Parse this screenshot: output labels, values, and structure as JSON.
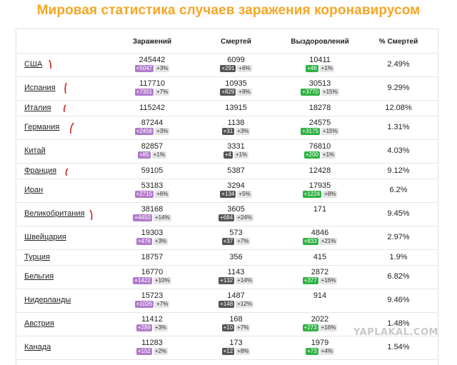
{
  "title": "Мировая статистика случаев заражения коронавирусом",
  "headers": {
    "cases": "Заражений",
    "deaths": "Смертей",
    "recovered": "Выздоровлений",
    "death_rate": "% Смертей"
  },
  "rows": [
    {
      "country": "США",
      "cases": "245442",
      "cases_new": "+5047",
      "cases_pct": "+3%",
      "deaths": "6099",
      "deaths_new": "+291",
      "deaths_pct": "+6%",
      "recovered": "10411",
      "recovered_new": "+46",
      "recovered_pct": "+1%",
      "rate": "2.49%"
    },
    {
      "country": "Испания",
      "cases": "117710",
      "cases_new": "+7301",
      "cases_pct": "+7%",
      "deaths": "10935",
      "deaths_new": "+829",
      "deaths_pct": "+9%",
      "recovered": "30513",
      "recovered_new": "+3770",
      "recovered_pct": "+15%",
      "rate": "9.29%"
    },
    {
      "country": "Италия",
      "cases": "115242",
      "cases_new": "",
      "cases_pct": "",
      "deaths": "13915",
      "deaths_new": "",
      "deaths_pct": "",
      "recovered": "18278",
      "recovered_new": "",
      "recovered_pct": "",
      "rate": "12.08%"
    },
    {
      "country": "Германия",
      "cases": "87244",
      "cases_new": "+2456",
      "cases_pct": "+3%",
      "deaths": "1138",
      "deaths_new": "+31",
      "deaths_pct": "+3%",
      "recovered": "24575",
      "recovered_new": "+3175",
      "recovered_pct": "+15%",
      "rate": "1.31%"
    },
    {
      "country": "Китай",
      "cases": "82857",
      "cases_new": "+85",
      "cases_pct": "+1%",
      "deaths": "3331",
      "deaths_new": "+4",
      "deaths_pct": "+1%",
      "recovered": "76810",
      "recovered_new": "+200",
      "recovered_pct": "+1%",
      "rate": "4.03%"
    },
    {
      "country": "Франция",
      "cases": "59105",
      "cases_new": "",
      "cases_pct": "",
      "deaths": "5387",
      "deaths_new": "",
      "deaths_pct": "",
      "recovered": "12428",
      "recovered_new": "",
      "recovered_pct": "",
      "rate": "9.12%"
    },
    {
      "country": "Иран",
      "cases": "53183",
      "cases_new": "+2715",
      "cases_pct": "+6%",
      "deaths": "3294",
      "deaths_new": "+134",
      "deaths_pct": "+5%",
      "recovered": "17935",
      "recovered_new": "+1224",
      "recovered_pct": "+8%",
      "rate": "6.2%"
    },
    {
      "country": "Великобритания",
      "cases": "38168",
      "cases_new": "+4450",
      "cases_pct": "+14%",
      "deaths": "3605",
      "deaths_new": "+684",
      "deaths_pct": "+24%",
      "recovered": "171",
      "recovered_new": "",
      "recovered_pct": "",
      "rate": "9.45%"
    },
    {
      "country": "Швейцария",
      "cases": "19303",
      "cases_new": "+476",
      "cases_pct": "+3%",
      "deaths": "573",
      "deaths_new": "+37",
      "deaths_pct": "+7%",
      "recovered": "4846",
      "recovered_new": "+833",
      "recovered_pct": "+21%",
      "rate": "2.97%"
    },
    {
      "country": "Турция",
      "cases": "18757",
      "cases_new": "",
      "cases_pct": "",
      "deaths": "356",
      "deaths_new": "",
      "deaths_pct": "",
      "recovered": "415",
      "recovered_new": "",
      "recovered_pct": "",
      "rate": "1.9%"
    },
    {
      "country": "Бельгия",
      "cases": "16770",
      "cases_new": "+1422",
      "cases_pct": "+10%",
      "deaths": "1143",
      "deaths_new": "+132",
      "deaths_pct": "+14%",
      "recovered": "2872",
      "recovered_new": "+377",
      "recovered_pct": "+16%",
      "rate": "6.82%"
    },
    {
      "country": "Нидерланды",
      "cases": "15723",
      "cases_new": "+1026",
      "cases_pct": "+7%",
      "deaths": "1487",
      "deaths_new": "+148",
      "deaths_pct": "+12%",
      "recovered": "914",
      "recovered_new": "",
      "recovered_pct": "",
      "rate": "9.46%"
    },
    {
      "country": "Австрия",
      "cases": "11412",
      "cases_new": "+289",
      "cases_pct": "+3%",
      "deaths": "168",
      "deaths_new": "+10",
      "deaths_pct": "+7%",
      "recovered": "2022",
      "recovered_new": "+273",
      "recovered_pct": "+16%",
      "rate": "1.48%"
    },
    {
      "country": "Канада",
      "cases": "11283",
      "cases_new": "+152",
      "cases_pct": "+2%",
      "deaths": "173",
      "deaths_new": "+12",
      "deaths_pct": "+8%",
      "recovered": "1979",
      "recovered_new": "+73",
      "recovered_pct": "+4%",
      "rate": "1.54%"
    }
  ],
  "watermark": "YAPLAKAL.COM",
  "colors": {
    "title": "#f5a623",
    "cases_badge": "#b27bcc",
    "deaths_badge": "#555555",
    "recovered_badge": "#2fb344",
    "pct_badge": "#e4e4e4",
    "pen_mark": "#d0241c"
  }
}
